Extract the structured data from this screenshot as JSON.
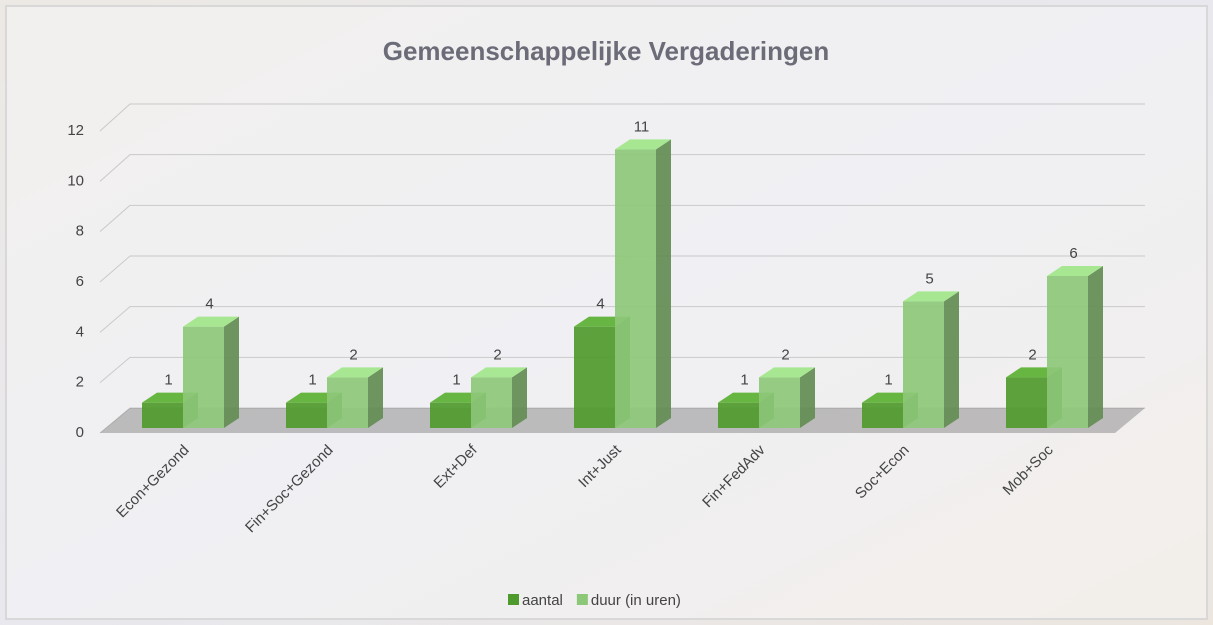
{
  "chart_data": {
    "type": "bar3d",
    "title": "Gemeenschappelijke Vergaderingen",
    "categories": [
      "Econ+Gezond",
      "Fin+Soc+Gezond",
      "Ext+Def",
      "Int+Just",
      "Fin+FedAdv",
      "Soc+Econ",
      "Mob+Soc"
    ],
    "series": [
      {
        "name": "aantal",
        "color": "#4f9a2c",
        "values": [
          1,
          1,
          1,
          4,
          1,
          1,
          2
        ]
      },
      {
        "name": "duur (in uren)",
        "color": "#8dc878",
        "values": [
          4,
          2,
          2,
          11,
          2,
          5,
          6
        ]
      }
    ],
    "ylim": [
      0,
      12
    ],
    "yticks": [
      0,
      2,
      4,
      6,
      8,
      10,
      12
    ],
    "grid": true,
    "legend": "bottom"
  }
}
